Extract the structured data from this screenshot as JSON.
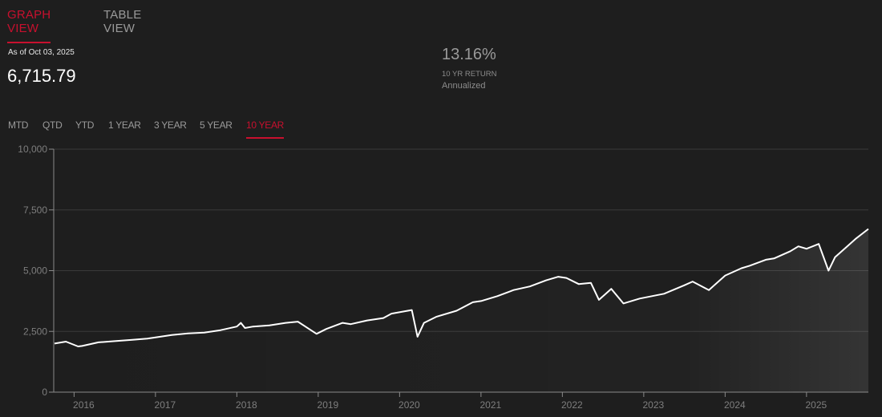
{
  "view_tabs": [
    {
      "label": "GRAPH VIEW",
      "active": true
    },
    {
      "label": "TABLE VIEW",
      "active": false
    }
  ],
  "summary": {
    "as_of": "As of Oct 03, 2025",
    "value": "6,715.79",
    "return_pct": "13.16%",
    "return_label": "10 YR RETURN",
    "return_sub": "Annualized"
  },
  "period_tabs": [
    {
      "label": "MTD",
      "active": false
    },
    {
      "label": "QTD",
      "active": false
    },
    {
      "label": "YTD",
      "active": false
    },
    {
      "label": "1 YEAR",
      "active": false
    },
    {
      "label": "3 YEAR",
      "active": false
    },
    {
      "label": "5 YEAR",
      "active": false
    },
    {
      "label": "10 YEAR",
      "active": true
    }
  ],
  "colors": {
    "accent": "#c8102e",
    "line": "#ffffff",
    "background": "#1e1e1e",
    "grid": "#3a3a3a"
  },
  "chart_data": {
    "type": "line",
    "xlabel": "",
    "ylabel": "",
    "x_range": [
      2015.75,
      2025.76
    ],
    "ylim": [
      0,
      10000
    ],
    "y_ticks": [
      0,
      2500,
      5000,
      7500,
      10000
    ],
    "y_tick_labels": [
      "0",
      "2,500",
      "5,000",
      "7,500",
      "10,000"
    ],
    "x_ticks": [
      2016,
      2017,
      2018,
      2019,
      2020,
      2021,
      2022,
      2023,
      2024,
      2025
    ],
    "x_tick_labels": [
      "2016",
      "2017",
      "2018",
      "2019",
      "2020",
      "2021",
      "2022",
      "2023",
      "2024",
      "2025"
    ],
    "grid": true,
    "series": [
      {
        "x": [
          2015.76,
          2015.9,
          2016.05,
          2016.1,
          2016.3,
          2016.5,
          2016.7,
          2016.9,
          2017.0,
          2017.2,
          2017.4,
          2017.6,
          2017.8,
          2018.0,
          2018.05,
          2018.1,
          2018.2,
          2018.4,
          2018.6,
          2018.75,
          2018.98,
          2019.1,
          2019.3,
          2019.4,
          2019.6,
          2019.8,
          2019.9,
          2020.1,
          2020.15,
          2020.22,
          2020.3,
          2020.45,
          2020.7,
          2020.9,
          2021.0,
          2021.2,
          2021.4,
          2021.6,
          2021.8,
          2021.95,
          2022.05,
          2022.2,
          2022.35,
          2022.45,
          2022.6,
          2022.75,
          2022.95,
          2023.1,
          2023.25,
          2023.5,
          2023.6,
          2023.8,
          2024.0,
          2024.2,
          2024.3,
          2024.5,
          2024.6,
          2024.8,
          2024.9,
          2025.0,
          2025.15,
          2025.27,
          2025.35,
          2025.5,
          2025.6,
          2025.76
        ],
        "values": [
          2000,
          2080,
          1880,
          1900,
          2050,
          2100,
          2150,
          2200,
          2250,
          2350,
          2420,
          2450,
          2550,
          2700,
          2850,
          2640,
          2700,
          2750,
          2850,
          2900,
          2400,
          2600,
          2850,
          2800,
          2950,
          3050,
          3230,
          3350,
          3380,
          2280,
          2850,
          3100,
          3350,
          3700,
          3750,
          3950,
          4200,
          4350,
          4600,
          4750,
          4700,
          4450,
          4500,
          3800,
          4250,
          3650,
          3850,
          3950,
          4050,
          4400,
          4550,
          4200,
          4800,
          5100,
          5200,
          5450,
          5500,
          5800,
          6000,
          5900,
          6100,
          5000,
          5550,
          6000,
          6300,
          6715.79
        ]
      }
    ]
  }
}
